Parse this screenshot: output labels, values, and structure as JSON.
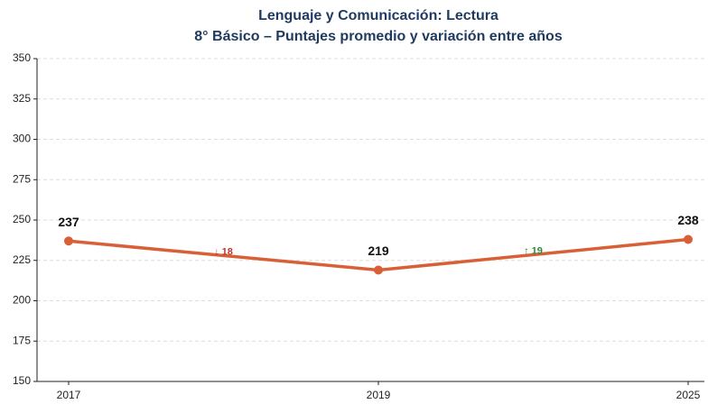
{
  "chart_data": {
    "type": "line",
    "title": "Lenguaje y Comunicación: Lectura",
    "subtitle": "8° Básico – Puntajes promedio y variación entre años",
    "categories": [
      "2017",
      "2019",
      "2025"
    ],
    "values": [
      237,
      219,
      238
    ],
    "color": "#d95f36",
    "ylim": [
      150,
      350
    ],
    "yticks": [
      150,
      175,
      200,
      225,
      250,
      275,
      300,
      325,
      350
    ],
    "grid": true,
    "annotations": [
      {
        "text": "↓ 18",
        "color": "#c0392b"
      },
      {
        "text": "↑ 19",
        "color": "#2e8b3a"
      }
    ]
  }
}
